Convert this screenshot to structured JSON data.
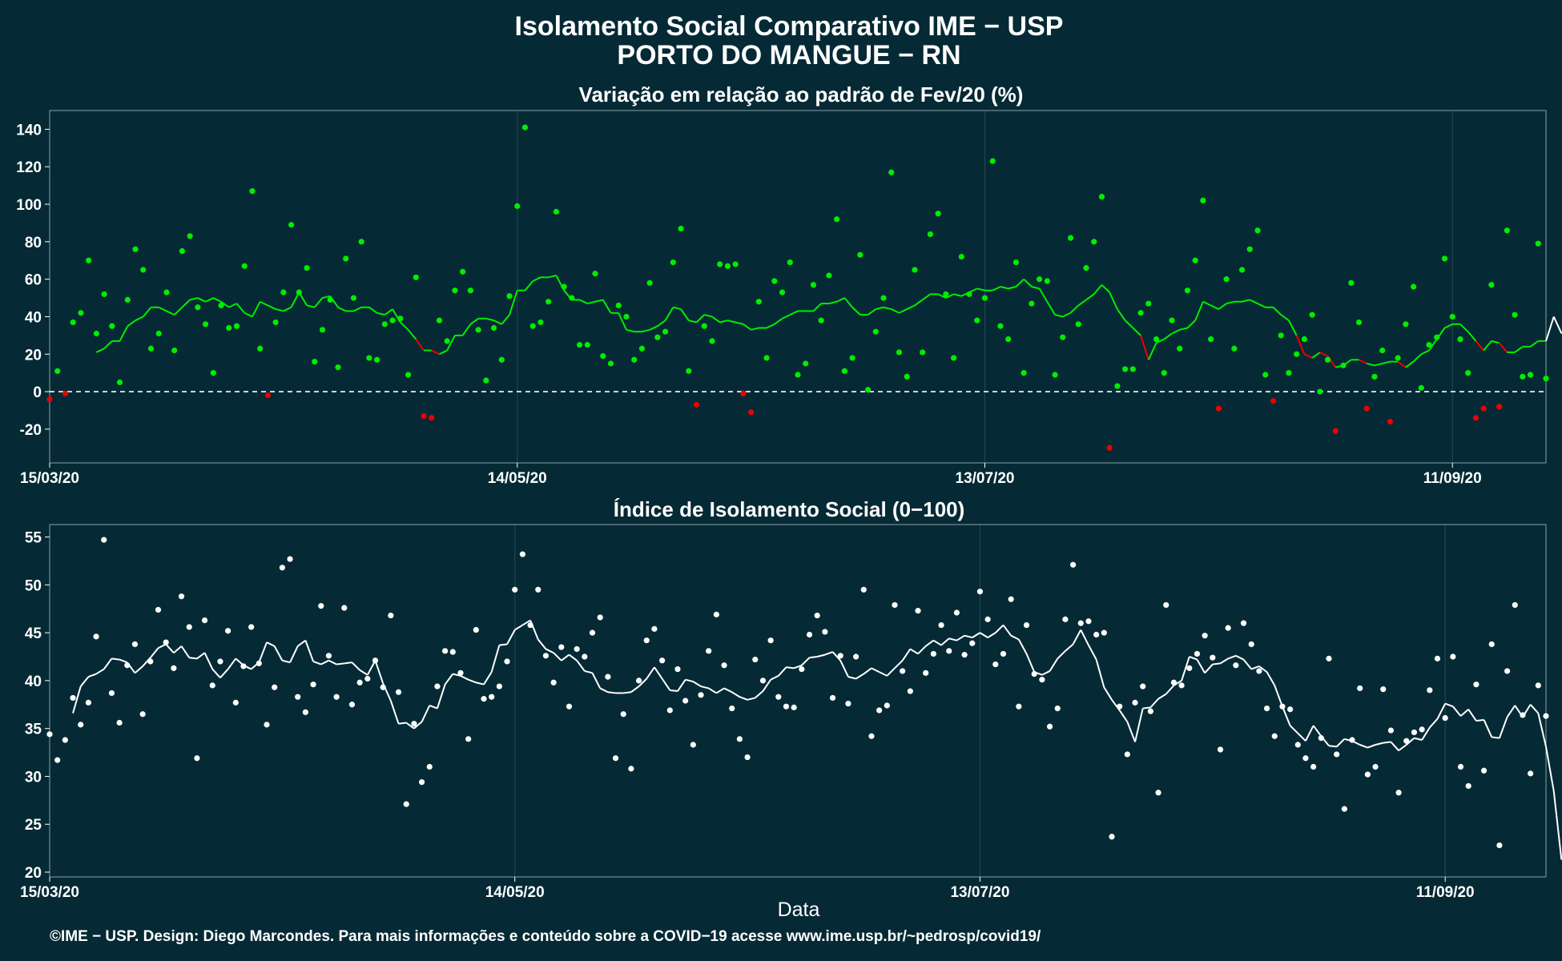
{
  "header": {
    "title_line1": "Isolamento Social Comparativo IME − USP",
    "title_line2": "PORTO DO MANGUE − RN"
  },
  "xlabel": "Data",
  "footer": "©IME − USP. Design: Diego Marcondes. Para mais informações e conteúdo sobre a COVID−19 acesse www.ime.usp.br/~pedrosp/covid19/",
  "x_tick_labels": [
    "15/03/20",
    "14/05/20",
    "13/07/20",
    "11/09/20"
  ],
  "chart_data": [
    {
      "type": "scatter",
      "title": "Variação em relação ao padrão de Fev/20 (%)",
      "x_start": "2020-03-15",
      "x_end": "2020-09-29",
      "ylim": [
        -38,
        150
      ],
      "y_ticks": [
        -20,
        0,
        20,
        40,
        60,
        80,
        100,
        120,
        140
      ],
      "reference_line": 0,
      "colors": {
        "positive": "#00ee00",
        "negative": "#ee0000"
      },
      "daily_points": [
        -4,
        11,
        -1,
        37,
        42,
        70,
        31,
        52,
        35,
        5,
        49,
        76,
        65,
        23,
        31,
        53,
        22,
        75,
        83,
        45,
        36,
        10,
        46,
        34,
        35,
        67,
        107,
        23,
        -2,
        37,
        53,
        89,
        53,
        66,
        16,
        33,
        49,
        13,
        71,
        50,
        80,
        18,
        17,
        36,
        38,
        39,
        9,
        61,
        -13,
        -14,
        38,
        27,
        54,
        64,
        54,
        33,
        6,
        34,
        17,
        51,
        99,
        141,
        35,
        37,
        48,
        96,
        56,
        50,
        25,
        25,
        63,
        19,
        15,
        46,
        40,
        17,
        23,
        58,
        29,
        32,
        69,
        87,
        11,
        -7,
        35,
        27,
        68,
        67,
        68,
        -1,
        -11,
        48,
        18,
        59,
        53,
        69,
        9,
        15,
        57,
        38,
        62,
        92,
        11,
        18,
        73,
        1,
        32,
        50,
        117,
        21,
        8,
        65,
        21,
        84,
        95,
        52,
        18,
        72,
        52,
        38,
        50,
        123,
        35,
        28,
        69,
        10,
        47,
        60,
        59,
        9,
        29,
        82,
        36,
        66,
        80,
        104,
        -30,
        3,
        12,
        12,
        42,
        47,
        28,
        10,
        38,
        23,
        54,
        70,
        102,
        28,
        -9,
        60,
        23,
        65,
        76,
        86,
        9,
        -5,
        30,
        10,
        20,
        28,
        41,
        0,
        17,
        -21,
        14,
        58,
        37,
        -9,
        8,
        22,
        -16,
        18,
        36,
        56,
        2,
        25,
        29,
        71,
        40,
        28,
        10,
        -14,
        -9,
        57,
        -8,
        86,
        41,
        8,
        9,
        79,
        7
      ],
      "moving_average": [
        null,
        null,
        null,
        null,
        null,
        null,
        21,
        23,
        27,
        27,
        35,
        38,
        40,
        45,
        45,
        43,
        41,
        45,
        49,
        50,
        48,
        50,
        48,
        45,
        47,
        42,
        40,
        48,
        46,
        44,
        43,
        45,
        53,
        46,
        45,
        50,
        51,
        45,
        43,
        43,
        45,
        45,
        42,
        41,
        44,
        37,
        33,
        28,
        22,
        22,
        20,
        22,
        30,
        30,
        36,
        39,
        39,
        38,
        36,
        41,
        54,
        54,
        59,
        61,
        61,
        62,
        54,
        49,
        49,
        47,
        48,
        49,
        42,
        42,
        33,
        32,
        32,
        33,
        35,
        38,
        45,
        44,
        38,
        37,
        41,
        40,
        37,
        38,
        37,
        36,
        33,
        34,
        34,
        36,
        39,
        41,
        43,
        43,
        43,
        47,
        47,
        48,
        50,
        45,
        41,
        41,
        44,
        45,
        44,
        42,
        44,
        46,
        49,
        52,
        52,
        50,
        52,
        51,
        53,
        55,
        54,
        54,
        56,
        55,
        56,
        60,
        56,
        55,
        48,
        41,
        40,
        42,
        46,
        49,
        52,
        57,
        53,
        44,
        38,
        34,
        30,
        17,
        26,
        28,
        31,
        33,
        34,
        38,
        48,
        46,
        44,
        47,
        48,
        48,
        49,
        47,
        45,
        45,
        41,
        38,
        30,
        20,
        18,
        21,
        19,
        13,
        14,
        17,
        17,
        15,
        14,
        15,
        16,
        16,
        13,
        16,
        20,
        22,
        28,
        34,
        36,
        36,
        32,
        27,
        22,
        27,
        26,
        21,
        21,
        24,
        24,
        27,
        27,
        40,
        31
      ]
    },
    {
      "type": "scatter",
      "title": "Índice de Isolamento Social (0−100)",
      "x_start": "2020-03-15",
      "x_end": "2020-09-29",
      "ylim": [
        19.5,
        56.3
      ],
      "y_ticks": [
        20,
        25,
        30,
        35,
        40,
        45,
        50,
        55
      ],
      "colors": {
        "points": "#ffffff",
        "line": "#ffffff"
      },
      "daily_points": [
        34.4,
        31.7,
        33.8,
        38.2,
        35.4,
        37.7,
        44.6,
        54.7,
        38.7,
        35.6,
        41.6,
        43.8,
        36.5,
        42.0,
        47.4,
        44.0,
        41.3,
        48.8,
        45.6,
        31.9,
        46.3,
        39.5,
        42.0,
        45.2,
        37.7,
        41.5,
        45.6,
        41.8,
        35.4,
        39.3,
        51.8,
        52.7,
        38.3,
        36.7,
        39.6,
        47.8,
        42.6,
        38.3,
        47.6,
        37.5,
        39.8,
        40.2,
        42.1,
        39.3,
        46.8,
        38.8,
        27.1,
        35.5,
        29.4,
        31.0,
        39.4,
        43.1,
        43.0,
        40.8,
        33.9,
        45.3,
        38.1,
        38.3,
        39.4,
        42.0,
        49.5,
        53.2,
        45.8,
        49.5,
        42.6,
        39.8,
        43.5,
        37.3,
        43.3,
        42.5,
        45.0,
        46.6,
        40.4,
        31.9,
        36.5,
        30.8,
        40.0,
        44.2,
        45.4,
        42.1,
        36.9,
        41.2,
        37.9,
        33.3,
        38.5,
        43.1,
        46.9,
        41.6,
        37.1,
        33.9,
        32.0,
        42.2,
        40.0,
        44.2,
        38.3,
        37.3,
        37.2,
        41.2,
        44.8,
        46.8,
        45.1,
        38.2,
        42.6,
        37.6,
        42.5,
        49.5,
        34.2,
        36.9,
        37.4,
        47.9,
        41.0,
        38.9,
        47.3,
        40.8,
        42.8,
        45.8,
        43.1,
        47.1,
        42.7,
        43.9,
        49.3,
        46.4,
        41.7,
        42.8,
        48.5,
        37.3,
        45.8,
        40.7,
        40.1,
        35.2,
        37.1,
        46.4,
        52.1,
        46.0,
        46.2,
        44.8,
        45.0,
        23.7,
        37.3,
        32.3,
        37.7,
        39.4,
        36.8,
        28.3,
        47.9,
        39.8,
        39.5,
        41.3,
        42.8,
        44.7,
        42.4,
        32.8,
        45.5,
        41.6,
        46.0,
        43.8,
        41.0,
        37.1,
        34.2,
        37.3,
        37.0,
        33.3,
        31.9,
        31.0,
        34.0,
        42.3,
        32.3,
        26.6,
        33.8,
        39.2,
        30.2,
        31.0,
        39.1,
        34.8,
        28.3,
        33.7,
        34.6,
        34.9,
        39.0,
        42.3,
        36.1,
        42.5,
        31.0,
        29.0,
        39.6,
        30.6,
        43.8,
        22.8,
        41.0,
        47.9,
        36.4,
        30.3,
        39.5,
        36.3
      ],
      "moving_average": [
        null,
        null,
        null,
        36.6,
        39.4,
        40.4,
        40.7,
        41.2,
        42.3,
        42.2,
        41.9,
        40.8,
        41.5,
        42.4,
        43.4,
        43.8,
        42.9,
        43.6,
        42.4,
        42.3,
        42.9,
        41.2,
        40.3,
        41.2,
        42.3,
        41.6,
        41.2,
        41.9,
        44.0,
        43.6,
        42.1,
        41.9,
        43.6,
        44.2,
        42.0,
        41.7,
        42.1,
        41.7,
        41.8,
        41.9,
        41.1,
        40.6,
        42.1,
        39.7,
        37.9,
        35.5,
        35.6,
        35.0,
        35.7,
        37.4,
        37.1,
        39.6,
        40.7,
        40.5,
        40.1,
        39.8,
        39.6,
        40.9,
        43.7,
        43.8,
        45.3,
        45.8,
        46.3,
        44.3,
        43.3,
        42.9,
        42.1,
        42.7,
        42.1,
        41.0,
        40.8,
        39.2,
        38.8,
        38.7,
        38.7,
        38.8,
        39.4,
        40.2,
        41.4,
        40.2,
        39.0,
        38.9,
        40.1,
        39.9,
        39.4,
        39.2,
        38.7,
        39.2,
        38.8,
        38.3,
        38.0,
        38.2,
        38.9,
        40.1,
        40.5,
        41.4,
        41.3,
        41.6,
        42.4,
        42.5,
        42.7,
        43.0,
        42.1,
        40.4,
        40.2,
        40.7,
        41.3,
        40.9,
        40.5,
        41.3,
        42.1,
        43.3,
        42.8,
        43.6,
        44.2,
        43.7,
        44.4,
        44.2,
        44.7,
        44.5,
        45.0,
        44.5,
        45.0,
        45.8,
        44.7,
        44.3,
        42.8,
        40.9,
        40.6,
        41.0,
        42.3,
        43.1,
        43.8,
        45.3,
        43.7,
        42.2,
        39.3,
        38.0,
        36.9,
        35.7,
        33.6,
        37.1,
        37.2,
        38.1,
        38.6,
        39.5,
        40.0,
        42.5,
        42.2,
        40.8,
        41.7,
        41.8,
        42.3,
        42.6,
        42.2,
        41.2,
        41.5,
        40.9,
        39.5,
        37.3,
        35.3,
        34.5,
        33.7,
        35.3,
        34.2,
        33.2,
        33.1,
        33.9,
        33.7,
        33.3,
        33.0,
        33.3,
        33.5,
        33.6,
        32.7,
        33.3,
        34.0,
        33.8,
        35.1,
        36.0,
        37.6,
        37.3,
        36.3,
        37.0,
        35.8,
        35.9,
        34.1,
        34.0,
        36.2,
        37.4,
        36.2,
        37.5,
        36.6,
        33.1,
        28.5,
        21.3
      ]
    }
  ]
}
